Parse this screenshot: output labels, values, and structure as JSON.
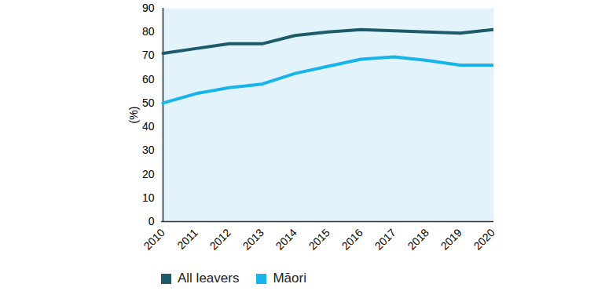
{
  "chart_data": {
    "type": "line",
    "ylabel": "(%)",
    "categories": [
      "2010",
      "2011",
      "2012",
      "2013",
      "2014",
      "2015",
      "2016",
      "2017",
      "2018",
      "2019",
      "2020"
    ],
    "series": [
      {
        "name": "All leavers",
        "color": "#1d5b6b",
        "values": [
          71,
          73,
          75,
          75,
          78.5,
          80,
          81,
          80.5,
          80,
          79.5,
          81
        ]
      },
      {
        "name": "Māori",
        "color": "#16b4ea",
        "values": [
          50,
          54,
          56.5,
          58,
          62.5,
          65.5,
          68.5,
          69.5,
          68,
          66,
          66
        ]
      }
    ],
    "ylim": [
      0,
      90
    ],
    "yticks": [
      0,
      10,
      20,
      30,
      40,
      50,
      60,
      70,
      80,
      90
    ],
    "grid": false,
    "legend": "bottom"
  }
}
